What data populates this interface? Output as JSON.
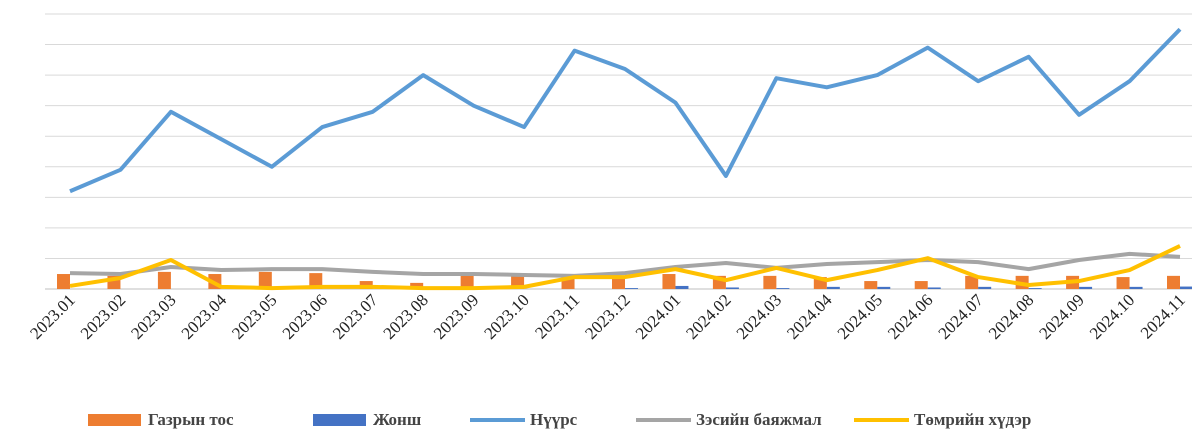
{
  "chart_data": {
    "type": "line",
    "categories": [
      "2023.01",
      "2023.02",
      "2023.03",
      "2023.04",
      "2023.05",
      "2023.06",
      "2023.07",
      "2023.08",
      "2023.09",
      "2023.10",
      "2023.11",
      "2023.12",
      "2024.01",
      "2024.02",
      "2024.03",
      "2024.04",
      "2024.05",
      "2024.06",
      "2024.07",
      "2024.08",
      "2024.09",
      "2024.10",
      "2024.11"
    ],
    "ylim": [
      0,
      90
    ],
    "yticks": [
      0,
      10,
      20,
      30,
      40,
      50,
      60,
      70,
      80,
      90
    ],
    "grid": true,
    "legend": "bottom",
    "series": [
      {
        "name": "Газрын тос",
        "kind": "bar",
        "color": "#ed7d31",
        "values": [
          4.9,
          4.3,
          5.6,
          4.9,
          5.6,
          5.2,
          2.6,
          2,
          4.6,
          4.6,
          3.9,
          3.6,
          4.9,
          4.3,
          4.3,
          3.9,
          2.6,
          2.6,
          4.3,
          4.3,
          4.3,
          3.9,
          4.3
        ]
      },
      {
        "name": "Жонш",
        "kind": "bar",
        "color": "#4472c4",
        "values": [
          0,
          0,
          0,
          0,
          0,
          0,
          0,
          0,
          0,
          0,
          0,
          0.3,
          1,
          0.5,
          0.3,
          0.7,
          0.7,
          0.5,
          0.7,
          0.3,
          0.7,
          0.7,
          0.8
        ]
      },
      {
        "name": "Нүүрс",
        "kind": "line",
        "color": "#5b9bd5",
        "values": [
          32,
          39,
          58,
          49,
          40,
          53,
          58,
          70,
          60,
          53,
          78,
          72,
          61,
          37,
          69,
          66,
          70,
          79,
          68,
          76,
          57,
          68,
          85
        ]
      },
      {
        "name": "Зэсийн баяжмал",
        "kind": "line",
        "color": "#a5a5a5",
        "values": [
          5.2,
          4.9,
          7.2,
          6.2,
          6.5,
          6.5,
          5.6,
          4.9,
          4.9,
          4.6,
          4.3,
          5.2,
          7.2,
          8.5,
          6.9,
          8.2,
          8.8,
          9.5,
          8.8,
          6.5,
          9.5,
          11.5,
          10.5
        ]
      },
      {
        "name": "Төмрийн хүдэр",
        "kind": "line",
        "color": "#ffc000",
        "values": [
          1,
          3.6,
          9.5,
          0.7,
          0.3,
          0.7,
          0.7,
          0.3,
          0.3,
          0.7,
          3.9,
          3.9,
          6.5,
          2.9,
          6.9,
          2.9,
          6.2,
          10.1,
          3.9,
          1.3,
          2.6,
          6.2,
          14.1
        ]
      }
    ]
  }
}
